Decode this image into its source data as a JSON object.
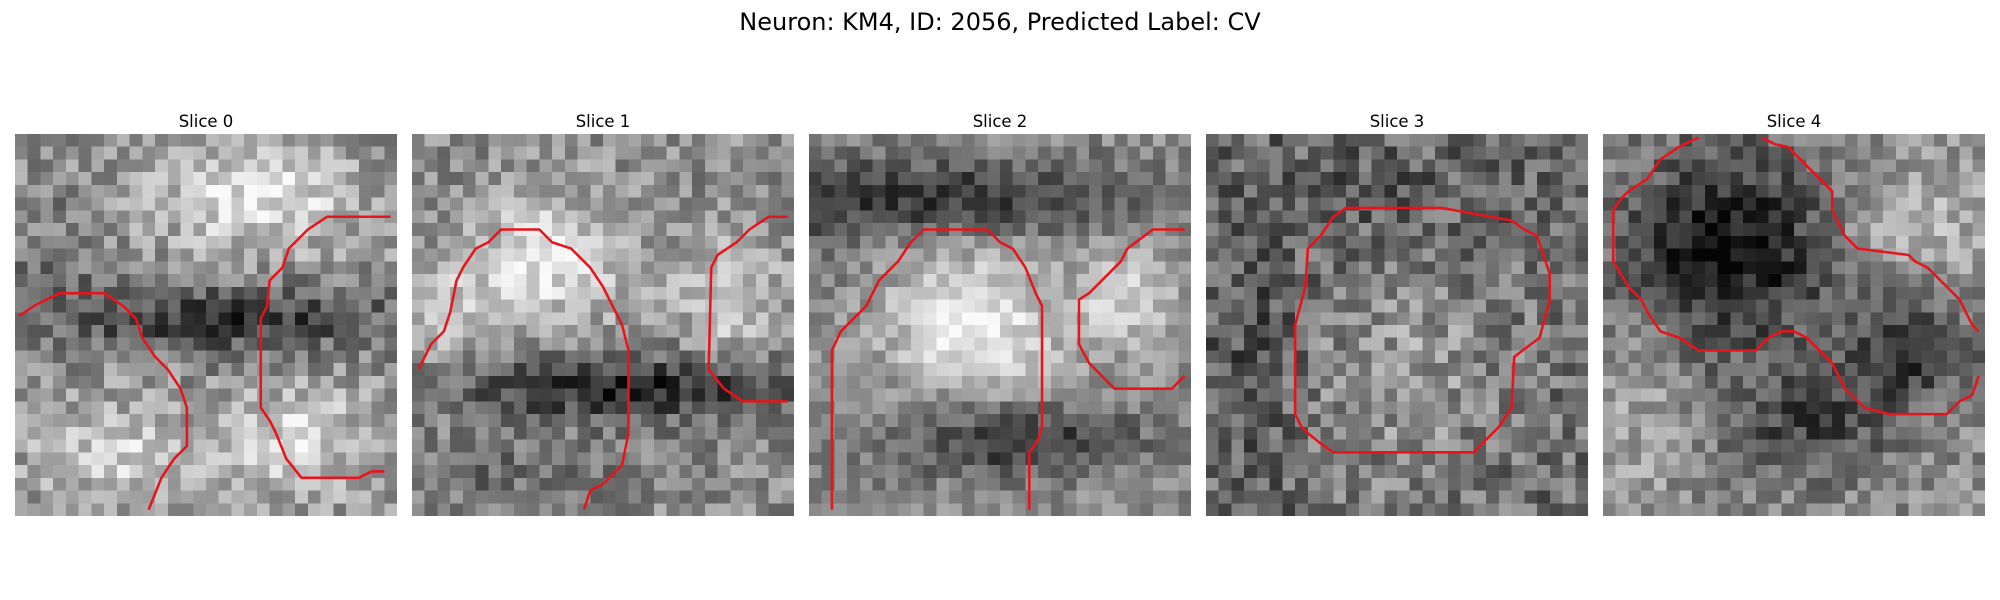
{
  "figure": {
    "title": "Neuron: KM4, ID: 2056, Predicted Label: CV"
  },
  "panels": [
    {
      "title": "Slice 0",
      "image": "grayscale-microscopy-slice",
      "contour_color": "#e8141c"
    },
    {
      "title": "Slice 1",
      "image": "grayscale-microscopy-slice",
      "contour_color": "#e8141c"
    },
    {
      "title": "Slice 2",
      "image": "grayscale-microscopy-slice",
      "contour_color": "#e8141c"
    },
    {
      "title": "Slice 3",
      "image": "grayscale-microscopy-slice",
      "contour_color": "#e8141c"
    },
    {
      "title": "Slice 4",
      "image": "grayscale-microscopy-slice",
      "contour_color": "#e8141c"
    }
  ]
}
